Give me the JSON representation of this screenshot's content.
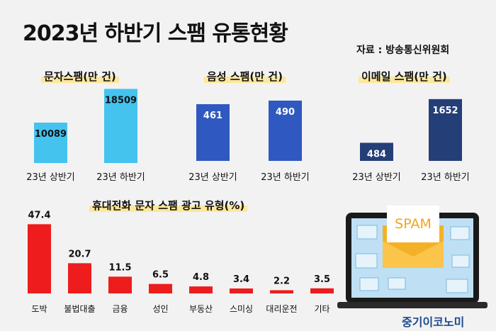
{
  "title": "2023년 하반기 스팸 유통현황",
  "source": "자료 : 방송통신위원회",
  "brand": "중기이코노미",
  "illustration": {
    "label": "SPAM"
  },
  "chart_data": [
    {
      "type": "bar",
      "title": "문자스팸(만 건)",
      "categories": [
        "23년 상반기",
        "23년 하반기"
      ],
      "values": [
        10089,
        18509
      ],
      "ylim": [
        0,
        20000
      ],
      "colors": [
        "#45c3ef",
        "#45c3ef"
      ]
    },
    {
      "type": "bar",
      "title": "음성 스팸(만 건)",
      "categories": [
        "23년 상반기",
        "23년 하반기"
      ],
      "values": [
        461,
        490
      ],
      "ylim": [
        0,
        530
      ],
      "colors": [
        "#2f58c0",
        "#2f58c0"
      ]
    },
    {
      "type": "bar",
      "title": "이메일 스팸(만 건)",
      "categories": [
        "23년 상반기",
        "23년 하반기"
      ],
      "values": [
        484,
        1652
      ],
      "ylim": [
        0,
        1800
      ],
      "colors": [
        "#243e78",
        "#243e78"
      ]
    },
    {
      "type": "bar",
      "title": "휴대전화 문자 스팸 광고 유형(%)",
      "categories": [
        "도박",
        "불법대출",
        "금융",
        "성인",
        "부동산",
        "스미싱",
        "대리운전",
        "기타"
      ],
      "values": [
        47.4,
        20.7,
        11.5,
        6.5,
        4.8,
        3.4,
        2.2,
        3.5
      ],
      "labels": [
        "47.4",
        "20.7",
        "11.5",
        "6.5",
        "4.8",
        "3.4",
        "2.2",
        "3.5"
      ],
      "ylim": [
        0,
        50
      ],
      "colors": [
        "#ee1c1c"
      ]
    }
  ]
}
